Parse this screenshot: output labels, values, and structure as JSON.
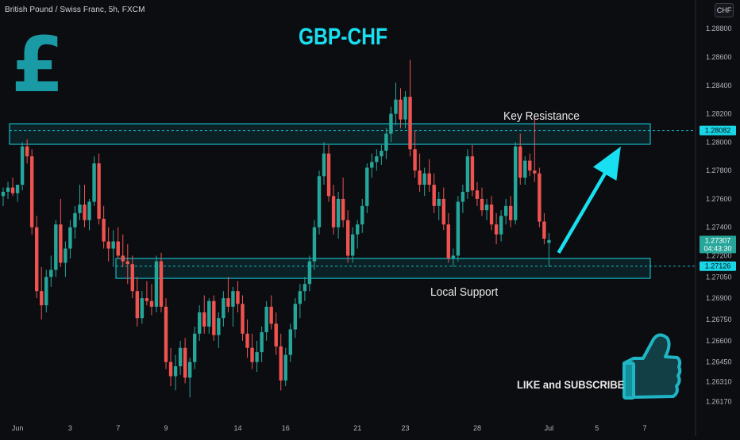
{
  "header": {
    "symbol": "British Pound / Swiss Franc, 5h, FXCM",
    "currency": "CHF"
  },
  "chart_data": {
    "type": "candlestick",
    "title": "GBP-CHF",
    "xlabel": "",
    "ylabel": "",
    "ylim": [
      1.2604,
      1.2898
    ],
    "x_ticks": [
      {
        "label": "Jun",
        "index": 3
      },
      {
        "label": "3",
        "index": 14
      },
      {
        "label": "7",
        "index": 24
      },
      {
        "label": "9",
        "index": 34
      },
      {
        "label": "14",
        "index": 49
      },
      {
        "label": "16",
        "index": 59
      },
      {
        "label": "21",
        "index": 74
      },
      {
        "label": "23",
        "index": 84
      },
      {
        "label": "28",
        "index": 99
      },
      {
        "label": "Jul",
        "index": 114
      },
      {
        "label": "5",
        "index": 124
      },
      {
        "label": "7",
        "index": 134
      }
    ],
    "y_ticks": [
      "1.28800",
      "1.28600",
      "1.28400",
      "1.28200",
      "1.28000",
      "1.27800",
      "1.27600",
      "1.27400",
      "1.27200",
      "1.27050",
      "1.26900",
      "1.26750",
      "1.26600",
      "1.26450",
      "1.26310",
      "1.26170"
    ],
    "y_tick_values": [
      1.288,
      1.286,
      1.284,
      1.282,
      1.28,
      1.278,
      1.276,
      1.274,
      1.272,
      1.2705,
      1.269,
      1.2675,
      1.266,
      1.2645,
      1.2631,
      1.2617
    ],
    "candles": [
      [
        1.2762,
        1.2768,
        1.2755,
        1.2765
      ],
      [
        1.2765,
        1.2772,
        1.276,
        1.2768
      ],
      [
        1.2768,
        1.2775,
        1.2762,
        1.2764
      ],
      [
        1.2764,
        1.277,
        1.2758,
        1.277
      ],
      [
        1.277,
        1.28,
        1.2766,
        1.2797
      ],
      [
        1.2797,
        1.2802,
        1.2785,
        1.279
      ],
      [
        1.279,
        1.2795,
        1.2735,
        1.274
      ],
      [
        1.274,
        1.2748,
        1.269,
        1.2695
      ],
      [
        1.2695,
        1.2712,
        1.2675,
        1.2685
      ],
      [
        1.2685,
        1.271,
        1.268,
        1.2705
      ],
      [
        1.2705,
        1.272,
        1.2698,
        1.271
      ],
      [
        1.271,
        1.2745,
        1.2705,
        1.2742
      ],
      [
        1.2742,
        1.276,
        1.2712,
        1.2715
      ],
      [
        1.2715,
        1.273,
        1.2705,
        1.2725
      ],
      [
        1.2725,
        1.2745,
        1.2718,
        1.274
      ],
      [
        1.274,
        1.2755,
        1.2732,
        1.275
      ],
      [
        1.275,
        1.277,
        1.2745,
        1.2756
      ],
      [
        1.2756,
        1.277,
        1.274,
        1.2745
      ],
      [
        1.2745,
        1.276,
        1.2738,
        1.2758
      ],
      [
        1.2758,
        1.279,
        1.2755,
        1.2785
      ],
      [
        1.2785,
        1.2792,
        1.2742,
        1.2746
      ],
      [
        1.2746,
        1.2755,
        1.2725,
        1.273
      ],
      [
        1.273,
        1.274,
        1.2716,
        1.2725
      ],
      [
        1.2725,
        1.2738,
        1.2712,
        1.273
      ],
      [
        1.273,
        1.274,
        1.2718,
        1.272
      ],
      [
        1.272,
        1.2735,
        1.2712,
        1.2716
      ],
      [
        1.2716,
        1.2728,
        1.27,
        1.2714
      ],
      [
        1.2714,
        1.272,
        1.269,
        1.2695
      ],
      [
        1.2695,
        1.2705,
        1.267,
        1.2676
      ],
      [
        1.2676,
        1.2695,
        1.2672,
        1.269
      ],
      [
        1.269,
        1.2702,
        1.2685,
        1.2688
      ],
      [
        1.2688,
        1.27,
        1.2678,
        1.2684
      ],
      [
        1.2684,
        1.272,
        1.268,
        1.2716
      ],
      [
        1.2716,
        1.2722,
        1.268,
        1.2684
      ],
      [
        1.2684,
        1.269,
        1.264,
        1.2645
      ],
      [
        1.2645,
        1.2655,
        1.2628,
        1.2635
      ],
      [
        1.2635,
        1.265,
        1.2625,
        1.2642
      ],
      [
        1.2642,
        1.266,
        1.2636,
        1.2655
      ],
      [
        1.2655,
        1.2662,
        1.263,
        1.2634
      ],
      [
        1.2634,
        1.2648,
        1.262,
        1.2645
      ],
      [
        1.2645,
        1.267,
        1.264,
        1.2665
      ],
      [
        1.2665,
        1.2685,
        1.266,
        1.268
      ],
      [
        1.268,
        1.2692,
        1.2665,
        1.267
      ],
      [
        1.267,
        1.269,
        1.2665,
        1.2688
      ],
      [
        1.2688,
        1.2692,
        1.266,
        1.2664
      ],
      [
        1.2664,
        1.268,
        1.2655,
        1.2676
      ],
      [
        1.2676,
        1.2695,
        1.267,
        1.269
      ],
      [
        1.269,
        1.2705,
        1.268,
        1.2684
      ],
      [
        1.2684,
        1.2698,
        1.267,
        1.2695
      ],
      [
        1.2695,
        1.2702,
        1.268,
        1.2686
      ],
      [
        1.2686,
        1.2692,
        1.266,
        1.2665
      ],
      [
        1.2665,
        1.2675,
        1.2648,
        1.2655
      ],
      [
        1.2655,
        1.2665,
        1.264,
        1.2645
      ],
      [
        1.2645,
        1.266,
        1.2638,
        1.2652
      ],
      [
        1.2652,
        1.267,
        1.2645,
        1.2666
      ],
      [
        1.2666,
        1.2688,
        1.266,
        1.2684
      ],
      [
        1.2684,
        1.2692,
        1.2668,
        1.2672
      ],
      [
        1.2672,
        1.268,
        1.265,
        1.2656
      ],
      [
        1.2656,
        1.2665,
        1.2625,
        1.2632
      ],
      [
        1.2632,
        1.2655,
        1.2628,
        1.265
      ],
      [
        1.265,
        1.2672,
        1.2645,
        1.2668
      ],
      [
        1.2668,
        1.269,
        1.2662,
        1.2686
      ],
      [
        1.2686,
        1.27,
        1.2676,
        1.2695
      ],
      [
        1.2695,
        1.2705,
        1.2688,
        1.27
      ],
      [
        1.27,
        1.272,
        1.2695,
        1.2716
      ],
      [
        1.2716,
        1.2745,
        1.271,
        1.274
      ],
      [
        1.274,
        1.278,
        1.2735,
        1.2776
      ],
      [
        1.2776,
        1.28,
        1.277,
        1.2792
      ],
      [
        1.2792,
        1.2798,
        1.2758,
        1.2762
      ],
      [
        1.2762,
        1.277,
        1.2735,
        1.274
      ],
      [
        1.274,
        1.2765,
        1.2732,
        1.276
      ],
      [
        1.276,
        1.2775,
        1.274,
        1.2745
      ],
      [
        1.2745,
        1.2752,
        1.2715,
        1.272
      ],
      [
        1.272,
        1.274,
        1.2715,
        1.2735
      ],
      [
        1.2735,
        1.2745,
        1.2725,
        1.2742
      ],
      [
        1.2742,
        1.276,
        1.2736,
        1.2755
      ],
      [
        1.2755,
        1.2785,
        1.275,
        1.2782
      ],
      [
        1.2782,
        1.2792,
        1.2775,
        1.2786
      ],
      [
        1.2786,
        1.2795,
        1.278,
        1.279
      ],
      [
        1.279,
        1.2798,
        1.2784,
        1.2794
      ],
      [
        1.2794,
        1.281,
        1.2788,
        1.2806
      ],
      [
        1.2806,
        1.2825,
        1.28,
        1.282
      ],
      [
        1.282,
        1.2842,
        1.2812,
        1.283
      ],
      [
        1.283,
        1.2838,
        1.281,
        1.2816
      ],
      [
        1.2816,
        1.2836,
        1.281,
        1.2832
      ],
      [
        1.2832,
        1.2858,
        1.279,
        1.2795
      ],
      [
        1.2795,
        1.2808,
        1.2775,
        1.278
      ],
      [
        1.278,
        1.2792,
        1.2765,
        1.277
      ],
      [
        1.277,
        1.2782,
        1.2762,
        1.2778
      ],
      [
        1.2778,
        1.2788,
        1.2765,
        1.277
      ],
      [
        1.277,
        1.2778,
        1.275,
        1.2755
      ],
      [
        1.2755,
        1.2765,
        1.2745,
        1.276
      ],
      [
        1.276,
        1.2768,
        1.2738,
        1.2742
      ],
      [
        1.2742,
        1.275,
        1.2715,
        1.2718
      ],
      [
        1.2718,
        1.2725,
        1.2712,
        1.272
      ],
      [
        1.272,
        1.2762,
        1.2716,
        1.2758
      ],
      [
        1.2758,
        1.277,
        1.275,
        1.2765
      ],
      [
        1.2765,
        1.2795,
        1.276,
        1.279
      ],
      [
        1.279,
        1.2798,
        1.2762,
        1.2766
      ],
      [
        1.2766,
        1.2772,
        1.2755,
        1.276
      ],
      [
        1.276,
        1.2768,
        1.2748,
        1.2752
      ],
      [
        1.2752,
        1.276,
        1.2745,
        1.2756
      ],
      [
        1.2756,
        1.2762,
        1.2738,
        1.2742
      ],
      [
        1.2742,
        1.275,
        1.2728,
        1.2735
      ],
      [
        1.2735,
        1.2752,
        1.273,
        1.2748
      ],
      [
        1.2748,
        1.276,
        1.2742,
        1.2755
      ],
      [
        1.2755,
        1.2762,
        1.274,
        1.2745
      ],
      [
        1.2745,
        1.28,
        1.2742,
        1.2797
      ],
      [
        1.2797,
        1.2806,
        1.277,
        1.2775
      ],
      [
        1.2775,
        1.279,
        1.277,
        1.2787
      ],
      [
        1.2787,
        1.2792,
        1.2776,
        1.278
      ],
      [
        1.278,
        1.2818,
        1.2772,
        1.2778
      ],
      [
        1.2778,
        1.2782,
        1.274,
        1.2744
      ],
      [
        1.2744,
        1.275,
        1.2728,
        1.2732
      ],
      [
        1.2729,
        1.2736,
        1.2712,
        1.2731
      ]
    ],
    "zones": [
      {
        "label": "Key Resistance",
        "top": 1.2813,
        "bottom": 1.27985,
        "level": 1.28082
      },
      {
        "label": "Local Support",
        "top": 1.2718,
        "bottom": 1.2704,
        "level": 1.27126
      }
    ],
    "price_labels": {
      "resistance": "1.28082",
      "support": "1.27126",
      "current": "1.27307",
      "countdown": "04:43:30"
    },
    "annotations": {
      "resistance": "Key Resistance",
      "support": "Local Support",
      "cta": "LIKE and SUBSCRIBE"
    },
    "arrow": {
      "from": [
        116,
        1.2722
      ],
      "to": [
        129,
        1.2797
      ]
    },
    "colors": {
      "up": "#26a69a",
      "down": "#ef5350",
      "zone": "#18d6e6",
      "accent": "#18e0f0",
      "current_bg": "#26a69a",
      "label_bg": "#18d6e6"
    },
    "icons": [
      "pound-sign-icon",
      "thumbs-up-icon",
      "arrow-up-right-icon"
    ]
  }
}
